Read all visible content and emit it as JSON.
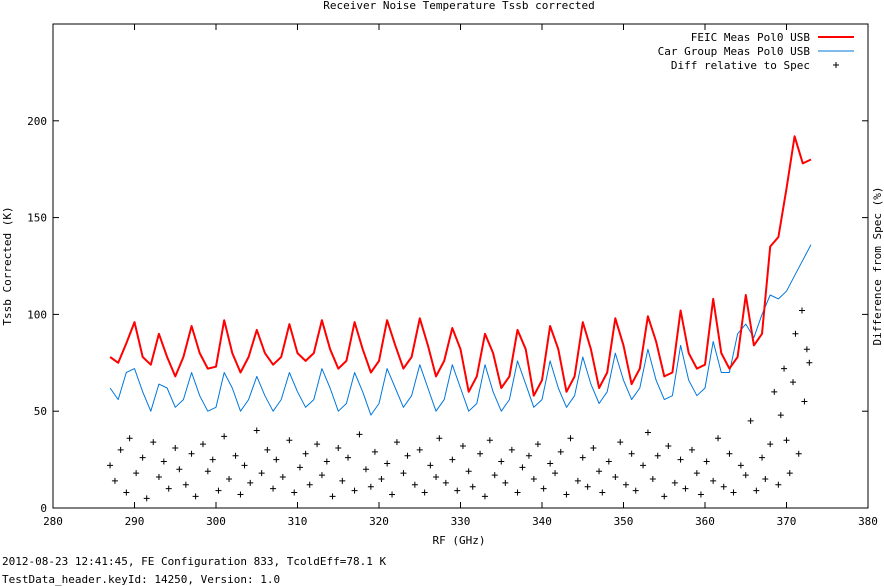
{
  "footer": {
    "line1": "2012-08-23 12:41:45, FE Configuration 833, TcoldEff=78.1 K",
    "line2": "TestData_header.keyId: 14250, Version: 1.0"
  },
  "chart_data": {
    "type": "line",
    "title": "Receiver Noise Temperature Tssb corrected",
    "xlabel": "RF (GHz)",
    "ylabel": "Tssb Corrected (K)",
    "y2label": "Difference from Spec (%)",
    "xlim": [
      280,
      380
    ],
    "ylim": [
      0,
      250
    ],
    "xticks": [
      280,
      290,
      300,
      310,
      320,
      330,
      340,
      350,
      360,
      370,
      380
    ],
    "yticks": [
      0,
      50,
      100,
      150,
      200
    ],
    "grid": false,
    "legend_position": "top-right",
    "series": [
      {
        "name": "FEIC Meas Pol0 USB",
        "color": "#ff0000",
        "style": "line",
        "x": [
          287,
          288,
          289,
          290,
          291,
          292,
          293,
          294,
          295,
          296,
          297,
          298,
          299,
          300,
          301,
          302,
          303,
          304,
          305,
          306,
          307,
          308,
          309,
          310,
          311,
          312,
          313,
          314,
          315,
          316,
          317,
          318,
          319,
          320,
          321,
          322,
          323,
          324,
          325,
          326,
          327,
          328,
          329,
          330,
          331,
          332,
          333,
          334,
          335,
          336,
          337,
          338,
          339,
          340,
          341,
          342,
          343,
          344,
          345,
          346,
          347,
          348,
          349,
          350,
          351,
          352,
          353,
          354,
          355,
          356,
          357,
          358,
          359,
          360,
          361,
          362,
          363,
          364,
          365,
          366,
          367,
          368,
          369,
          370,
          371,
          372,
          373
        ],
        "values": [
          78,
          75,
          85,
          96,
          78,
          74,
          90,
          78,
          68,
          78,
          94,
          80,
          72,
          73,
          97,
          80,
          70,
          78,
          92,
          80,
          74,
          78,
          95,
          80,
          76,
          80,
          97,
          82,
          72,
          76,
          96,
          82,
          70,
          76,
          97,
          84,
          72,
          78,
          98,
          84,
          68,
          76,
          93,
          82,
          60,
          68,
          90,
          80,
          62,
          68,
          92,
          82,
          58,
          66,
          94,
          82,
          60,
          68,
          96,
          82,
          62,
          70,
          98,
          84,
          64,
          72,
          99,
          86,
          68,
          70,
          102,
          80,
          72,
          74,
          108,
          80,
          72,
          78,
          110,
          84,
          90,
          135,
          140,
          165,
          192,
          178,
          180
        ]
      },
      {
        "name": "Car Group Meas Pol0 USB",
        "color": "#0077dd",
        "style": "line",
        "x": [
          287,
          288,
          289,
          290,
          291,
          292,
          293,
          294,
          295,
          296,
          297,
          298,
          299,
          300,
          301,
          302,
          303,
          304,
          305,
          306,
          307,
          308,
          309,
          310,
          311,
          312,
          313,
          314,
          315,
          316,
          317,
          318,
          319,
          320,
          321,
          322,
          323,
          324,
          325,
          326,
          327,
          328,
          329,
          330,
          331,
          332,
          333,
          334,
          335,
          336,
          337,
          338,
          339,
          340,
          341,
          342,
          343,
          344,
          345,
          346,
          347,
          348,
          349,
          350,
          351,
          352,
          353,
          354,
          355,
          356,
          357,
          358,
          359,
          360,
          361,
          362,
          363,
          364,
          365,
          366,
          367,
          368,
          369,
          370,
          371,
          372,
          373
        ],
        "values": [
          62,
          56,
          70,
          72,
          60,
          50,
          64,
          62,
          52,
          56,
          70,
          58,
          50,
          52,
          70,
          62,
          50,
          56,
          68,
          58,
          50,
          56,
          70,
          60,
          52,
          56,
          72,
          62,
          50,
          54,
          70,
          60,
          48,
          54,
          72,
          62,
          52,
          58,
          74,
          62,
          50,
          56,
          74,
          62,
          50,
          54,
          74,
          60,
          50,
          56,
          76,
          64,
          52,
          56,
          76,
          62,
          52,
          58,
          78,
          64,
          54,
          60,
          80,
          66,
          56,
          62,
          82,
          66,
          56,
          58,
          84,
          66,
          58,
          62,
          86,
          70,
          70,
          90,
          95,
          88,
          100,
          110,
          108,
          112,
          120,
          128,
          136
        ]
      },
      {
        "name": "Diff relative to Spec",
        "color": "#000000",
        "style": "points",
        "x": [
          287,
          287.6,
          288.3,
          289,
          289.4,
          290.2,
          291,
          291.5,
          292.3,
          293,
          293.6,
          294.2,
          295,
          295.5,
          296.3,
          297,
          297.5,
          298.4,
          299,
          299.6,
          300.3,
          301,
          301.6,
          302.4,
          303,
          303.5,
          304.2,
          305,
          305.6,
          306.3,
          307,
          307.4,
          308.2,
          309,
          309.6,
          310.3,
          311,
          311.5,
          312.4,
          313,
          313.6,
          314.3,
          315,
          315.5,
          316.2,
          317,
          317.6,
          318.4,
          319,
          319.5,
          320.3,
          321,
          321.6,
          322.2,
          323,
          323.5,
          324.4,
          325,
          325.6,
          326.3,
          327,
          327.4,
          328.2,
          329,
          329.6,
          330.3,
          331,
          331.5,
          332.4,
          333,
          333.6,
          334.2,
          335,
          335.5,
          336.3,
          337,
          337.6,
          338.4,
          339,
          339.5,
          340.2,
          341,
          341.6,
          342.3,
          343,
          343.5,
          344.4,
          345,
          345.6,
          346.3,
          347,
          347.4,
          348.2,
          349,
          349.6,
          350.3,
          351,
          351.5,
          352.4,
          353,
          353.6,
          354.2,
          355,
          355.5,
          356.3,
          357,
          357.6,
          358.4,
          359,
          359.5,
          360.2,
          361,
          361.6,
          362.3,
          363,
          363.5,
          364.4,
          365,
          365.6,
          366.3,
          367,
          367.4,
          368,
          368.5,
          369,
          369.3,
          369.7,
          370,
          370.4,
          370.8,
          371.1,
          371.5,
          371.9,
          372.2,
          372.5,
          372.8
        ],
        "values": [
          22,
          14,
          30,
          8,
          36,
          18,
          26,
          5,
          34,
          16,
          24,
          10,
          31,
          20,
          12,
          28,
          6,
          33,
          19,
          25,
          9,
          37,
          15,
          27,
          7,
          22,
          13,
          40,
          18,
          30,
          10,
          25,
          16,
          35,
          8,
          21,
          28,
          12,
          33,
          17,
          24,
          6,
          31,
          14,
          26,
          9,
          38,
          20,
          11,
          29,
          15,
          23,
          7,
          34,
          18,
          27,
          12,
          30,
          8,
          22,
          16,
          36,
          13,
          25,
          9,
          32,
          19,
          11,
          28,
          6,
          35,
          17,
          24,
          13,
          30,
          8,
          21,
          27,
          15,
          33,
          10,
          23,
          18,
          29,
          7,
          36,
          14,
          26,
          11,
          31,
          19,
          8,
          24,
          16,
          34,
          12,
          28,
          9,
          22,
          39,
          15,
          27,
          6,
          32,
          13,
          25,
          10,
          30,
          18,
          7,
          24,
          14,
          36,
          11,
          28,
          8,
          22,
          17,
          45,
          9,
          26,
          15,
          33,
          60,
          12,
          48,
          72,
          35,
          18,
          65,
          90,
          28,
          102,
          55,
          82,
          75
        ]
      }
    ]
  }
}
